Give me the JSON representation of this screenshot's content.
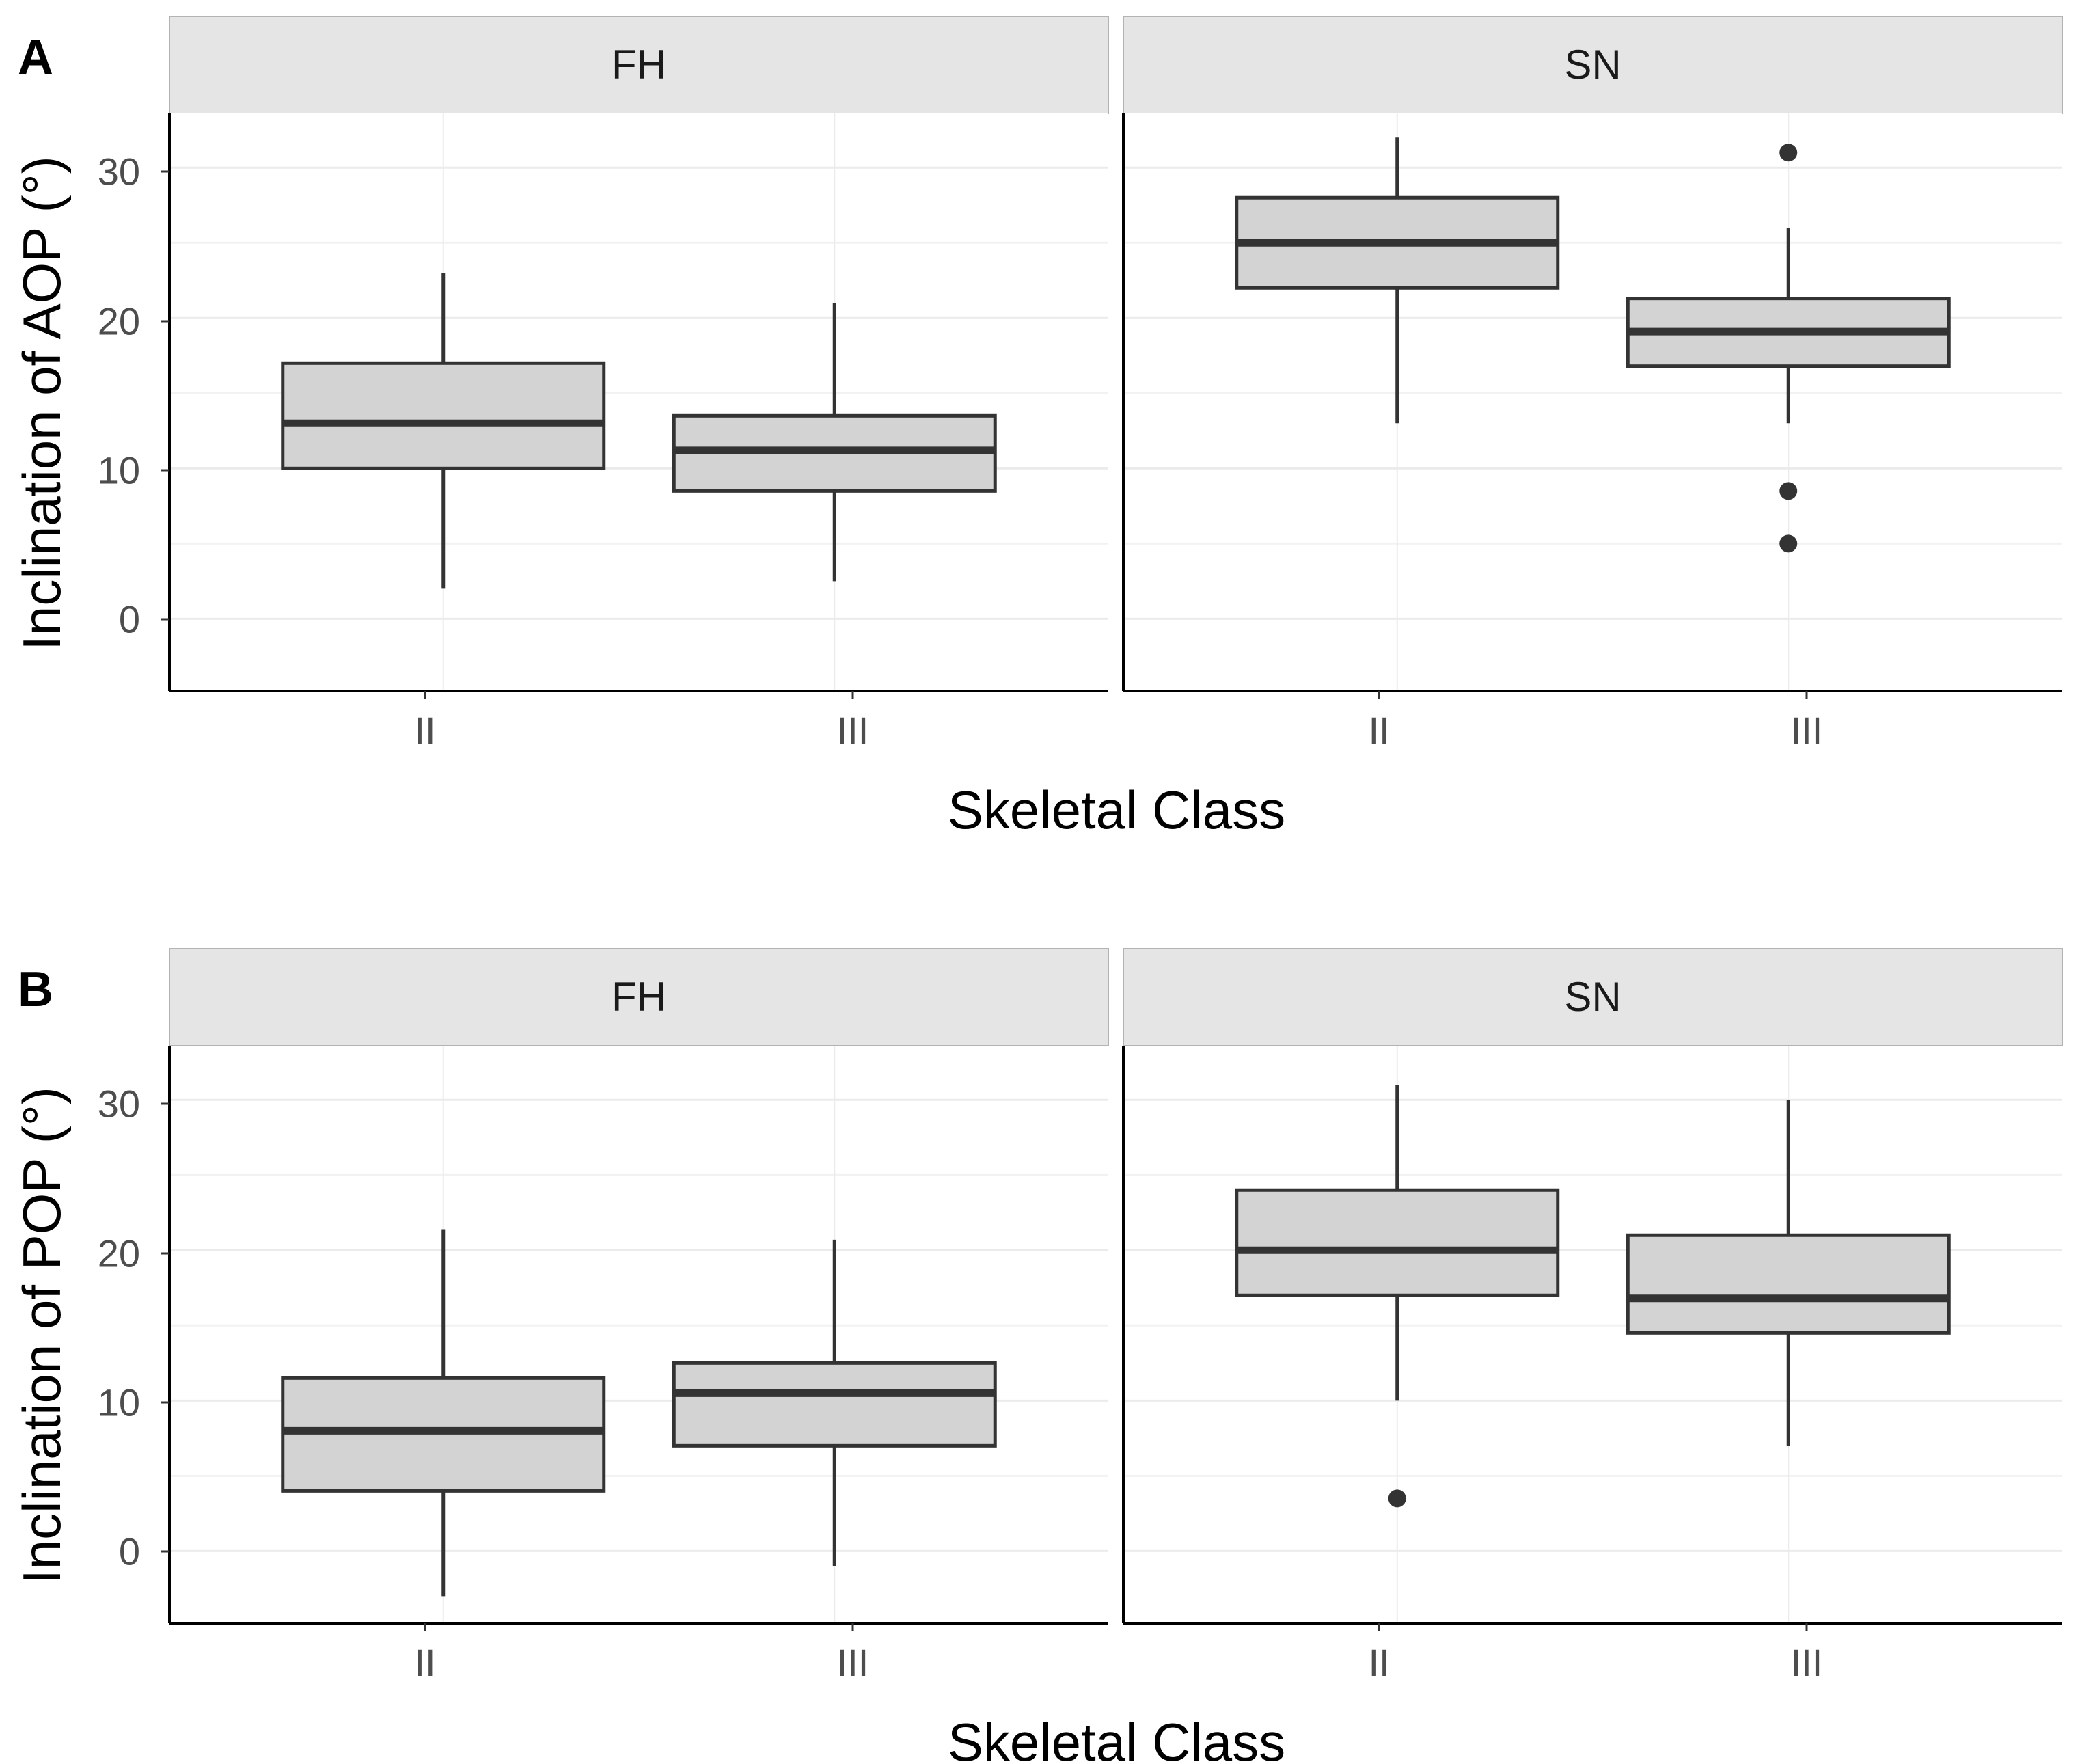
{
  "figure": {
    "colors": {
      "box_fill": "#d3d3d3",
      "box_stroke": "#333333",
      "strip_fill": "#e5e5e5",
      "strip_stroke": "#b3b3b3",
      "grid_major": "#ebebeb",
      "axis_line": "#000000",
      "point": "#333333"
    }
  },
  "chart_data": [
    {
      "type": "box",
      "panel_label": "A",
      "xlabel": "Skeletal Class",
      "ylabel": "Inclination of AOP (°)",
      "ylim": [
        -4.8,
        33.6
      ],
      "yticks": [
        0,
        10,
        20,
        30
      ],
      "facets": [
        {
          "strip": "FH",
          "categories": [
            "II",
            "III"
          ],
          "boxes": [
            {
              "category": "II",
              "whisker_low": 2,
              "q1": 10,
              "median": 13,
              "q3": 17,
              "whisker_high": 23,
              "outliers": []
            },
            {
              "category": "III",
              "whisker_low": 2.5,
              "q1": 8.5,
              "median": 11.2,
              "q3": 13.5,
              "whisker_high": 21,
              "outliers": []
            }
          ]
        },
        {
          "strip": "SN",
          "categories": [
            "II",
            "III"
          ],
          "boxes": [
            {
              "category": "II",
              "whisker_low": 13,
              "q1": 22,
              "median": 25,
              "q3": 28,
              "whisker_high": 32,
              "outliers": []
            },
            {
              "category": "III",
              "whisker_low": 13,
              "q1": 16.8,
              "median": 19.1,
              "q3": 21.3,
              "whisker_high": 26,
              "outliers": [
                31,
                8.5,
                5
              ]
            }
          ]
        }
      ]
    },
    {
      "type": "box",
      "panel_label": "B",
      "xlabel": "Skeletal Class",
      "ylabel": "Inclination of POP (°)",
      "ylim": [
        -4.8,
        33.6
      ],
      "yticks": [
        0,
        10,
        20,
        30
      ],
      "facets": [
        {
          "strip": "FH",
          "categories": [
            "II",
            "III"
          ],
          "boxes": [
            {
              "category": "II",
              "whisker_low": -3,
              "q1": 4,
              "median": 8,
              "q3": 11.5,
              "whisker_high": 21.4,
              "outliers": []
            },
            {
              "category": "III",
              "whisker_low": -1,
              "q1": 7,
              "median": 10.5,
              "q3": 12.5,
              "whisker_high": 20.7,
              "outliers": []
            }
          ]
        },
        {
          "strip": "SN",
          "categories": [
            "II",
            "III"
          ],
          "boxes": [
            {
              "category": "II",
              "whisker_low": 10,
              "q1": 17,
              "median": 20,
              "q3": 24,
              "whisker_high": 31,
              "outliers": [
                3.5
              ]
            },
            {
              "category": "III",
              "whisker_low": 7,
              "q1": 14.5,
              "median": 16.8,
              "q3": 21,
              "whisker_high": 30,
              "outliers": []
            }
          ]
        }
      ]
    }
  ]
}
